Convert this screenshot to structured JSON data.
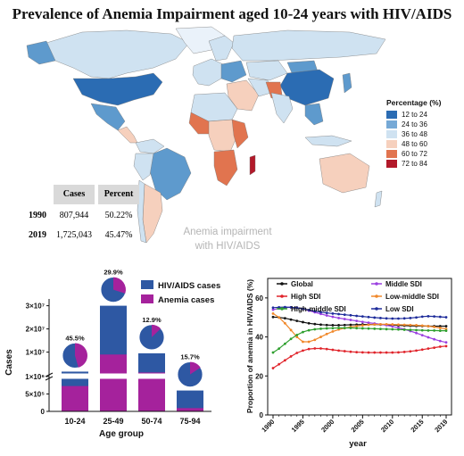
{
  "title": "Prevalence of Anemia Impairment aged 10-24 years with HIV/AIDS",
  "map": {
    "legend_title": "Percentage (%)",
    "legend": [
      {
        "label": "12 to 24",
        "color": "#2b6cb3"
      },
      {
        "label": "24 to 36",
        "color": "#76a9d6"
      },
      {
        "label": "36 to 48",
        "color": "#cfe2f1"
      },
      {
        "label": "48 to 60",
        "color": "#f6d0bd"
      },
      {
        "label": "60 to 72",
        "color": "#e1744f"
      },
      {
        "label": "72 to 84",
        "color": "#b2192a"
      }
    ],
    "watermark_line1": "Anemia impairment",
    "watermark_line2": "with HIV/AIDS"
  },
  "table": {
    "headers": [
      "Cases",
      "Percent"
    ],
    "rows": [
      {
        "year": "1990",
        "cases": "807,944",
        "percent": "50.22%"
      },
      {
        "year": "2019",
        "cases": "1,725,043",
        "percent": "45.47%"
      }
    ]
  },
  "chart_data": [
    {
      "type": "bar",
      "categories": [
        "10-24",
        "25-49",
        "50-74",
        "75-94"
      ],
      "xlabel": "Age group",
      "ylabel": "Cases",
      "series": [
        {
          "name": "HIV/AIDS cases",
          "color": "#2e58a3",
          "values": [
            1600000,
            30000000,
            9500000,
            600000
          ]
        },
        {
          "name": "Anemia cases",
          "color": "#a5229c",
          "values": [
            728000,
            8970000,
            1225000,
            94000
          ]
        }
      ],
      "pie_labels": [
        "45.5%",
        "29.9%",
        "12.9%",
        "15.7%"
      ],
      "pie_fractions": [
        0.455,
        0.299,
        0.129,
        0.157
      ],
      "y_ticks_upper": [
        "1×10⁷",
        "2×10⁷",
        "3×10⁷"
      ],
      "y_ticks_lower": [
        "0",
        "5×10⁵",
        "1×10⁶"
      ],
      "ylim_lower": [
        0,
        1000000
      ],
      "ylim_upper": [
        1000000,
        31000000
      ]
    },
    {
      "type": "line",
      "xlabel": "year",
      "ylabel": "Proportion of anemia in HIV/AIDS (%)",
      "x": [
        1990,
        1991,
        1992,
        1993,
        1994,
        1995,
        1996,
        1997,
        1998,
        1999,
        2000,
        2001,
        2002,
        2003,
        2004,
        2005,
        2006,
        2007,
        2008,
        2009,
        2010,
        2011,
        2012,
        2013,
        2014,
        2015,
        2016,
        2017,
        2018,
        2019
      ],
      "x_ticks": [
        "1990",
        "1995",
        "2000",
        "2005",
        "2010",
        "2015",
        "2019"
      ],
      "y_ticks": [
        "0",
        "20",
        "40",
        "60"
      ],
      "ylim": [
        0,
        70
      ],
      "series": [
        {
          "name": "Global",
          "color": "#111111",
          "values": [
            50.2,
            50.0,
            49.6,
            48.9,
            48.2,
            47.6,
            47.0,
            46.6,
            46.3,
            46.1,
            46.0,
            46.0,
            46.1,
            46.2,
            46.3,
            46.4,
            46.4,
            46.4,
            46.3,
            46.2,
            46.1,
            45.9,
            45.8,
            45.7,
            45.6,
            45.6,
            45.5,
            45.5,
            45.5,
            45.5
          ]
        },
        {
          "name": "Middle SDI",
          "color": "#9a3fe0",
          "values": [
            54.0,
            54.6,
            55.0,
            55.2,
            55.0,
            54.4,
            53.5,
            52.6,
            51.8,
            51.0,
            50.3,
            49.7,
            49.2,
            48.7,
            48.2,
            47.7,
            47.3,
            46.9,
            46.5,
            46.0,
            45.4,
            44.7,
            43.9,
            43.0,
            42.0,
            40.9,
            39.8,
            38.8,
            37.9,
            37.2
          ]
        },
        {
          "name": "High SDI",
          "color": "#e0242b",
          "values": [
            24.0,
            26.0,
            28.0,
            30.0,
            31.8,
            33.0,
            33.8,
            34.1,
            34.1,
            33.8,
            33.4,
            33.0,
            32.7,
            32.4,
            32.2,
            32.1,
            32.0,
            32.0,
            32.0,
            32.0,
            32.0,
            32.1,
            32.3,
            32.6,
            33.0,
            33.5,
            34.0,
            34.5,
            35.0,
            35.3
          ]
        },
        {
          "name": "Low-middle SDI",
          "color": "#f0882a",
          "values": [
            52.0,
            50.0,
            47.0,
            43.5,
            40.0,
            37.5,
            37.5,
            38.5,
            40.0,
            41.5,
            42.8,
            43.8,
            44.5,
            45.1,
            45.5,
            45.9,
            46.2,
            46.4,
            46.5,
            46.5,
            46.4,
            46.3,
            46.2,
            46.1,
            46.0,
            45.8,
            45.5,
            45.1,
            44.6,
            44.1
          ]
        },
        {
          "name": "High-middle SDI",
          "color": "#2e9f2e",
          "values": [
            32.0,
            34.0,
            36.5,
            39.0,
            41.0,
            42.5,
            43.4,
            43.9,
            44.2,
            44.4,
            44.5,
            44.6,
            44.6,
            44.6,
            44.5,
            44.4,
            44.3,
            44.2,
            44.1,
            44.0,
            43.9,
            43.8,
            43.7,
            43.6,
            43.5,
            43.4,
            43.3,
            43.3,
            43.2,
            43.2
          ]
        },
        {
          "name": "Low SDI",
          "color": "#1d2b9a",
          "values": [
            55.0,
            55.2,
            55.3,
            55.2,
            54.9,
            54.4,
            53.8,
            53.2,
            52.7,
            52.3,
            52.0,
            51.7,
            51.4,
            51.1,
            50.8,
            50.5,
            50.2,
            49.9,
            49.7,
            49.5,
            49.4,
            49.4,
            49.5,
            49.7,
            50.0,
            50.4,
            50.6,
            50.5,
            50.3,
            50.1
          ]
        }
      ]
    }
  ]
}
